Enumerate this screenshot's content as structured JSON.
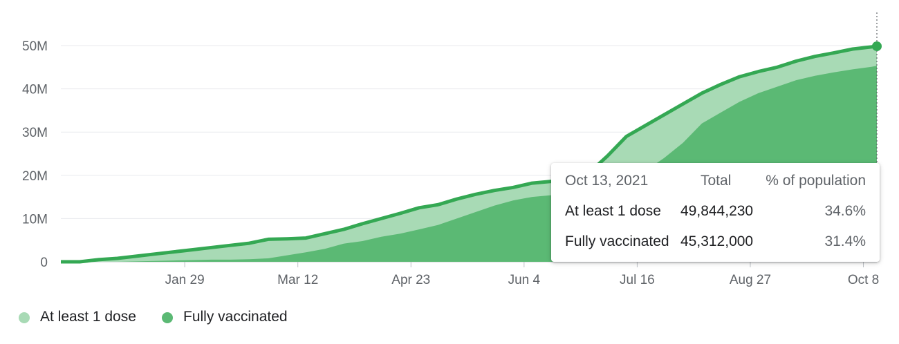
{
  "chart_data": {
    "type": "area",
    "x": [
      "2020-12-14",
      "2020-12-21",
      "2020-12-28",
      "2021-01-04",
      "2021-01-11",
      "2021-01-18",
      "2021-01-25",
      "2021-02-01",
      "2021-02-08",
      "2021-02-15",
      "2021-02-22",
      "2021-03-01",
      "2021-03-08",
      "2021-03-15",
      "2021-03-22",
      "2021-03-29",
      "2021-04-05",
      "2021-04-12",
      "2021-04-19",
      "2021-04-26",
      "2021-05-03",
      "2021-05-10",
      "2021-05-17",
      "2021-05-24",
      "2021-05-31",
      "2021-06-07",
      "2021-06-14",
      "2021-06-21",
      "2021-06-28",
      "2021-07-05",
      "2021-07-12",
      "2021-07-19",
      "2021-07-26",
      "2021-08-02",
      "2021-08-09",
      "2021-08-16",
      "2021-08-23",
      "2021-08-30",
      "2021-09-06",
      "2021-09-13",
      "2021-09-20",
      "2021-09-27",
      "2021-10-04",
      "2021-10-11",
      "2021-10-13"
    ],
    "series": [
      {
        "name": "At least 1 dose",
        "color": "#34a853",
        "fill": "#a8dab5",
        "values": [
          0.0,
          0.0,
          0.5,
          0.8,
          1.3,
          1.8,
          2.3,
          2.8,
          3.3,
          3.8,
          4.3,
          5.2,
          5.3,
          5.5,
          6.5,
          7.5,
          8.8,
          10.0,
          11.2,
          12.5,
          13.2,
          14.5,
          15.6,
          16.5,
          17.2,
          18.2,
          18.6,
          19.0,
          20.5,
          24.5,
          29.0,
          31.5,
          34.0,
          36.5,
          39.0,
          41.0,
          42.8,
          44.0,
          45.0,
          46.4,
          47.5,
          48.3,
          49.2,
          49.7,
          49.84423
        ]
      },
      {
        "name": "Fully vaccinated",
        "color": "#5bb974",
        "fill": "#5bb974",
        "values": [
          0.0,
          0.0,
          0.0,
          0.0,
          0.1,
          0.2,
          0.3,
          0.4,
          0.5,
          0.5,
          0.6,
          0.8,
          1.5,
          2.2,
          3.0,
          4.2,
          4.8,
          5.8,
          6.5,
          7.5,
          8.5,
          10.0,
          11.5,
          13.0,
          14.2,
          15.0,
          15.4,
          15.8,
          16.5,
          17.5,
          19.0,
          21.0,
          24.0,
          27.5,
          32.0,
          34.5,
          37.0,
          39.0,
          40.5,
          42.0,
          43.0,
          43.8,
          44.5,
          45.1,
          45.312
        ]
      }
    ],
    "ylim": [
      0,
      50
    ],
    "yticks": [
      "0",
      "10M",
      "20M",
      "30M",
      "40M",
      "50M"
    ],
    "xticks": [
      {
        "label": "Jan 29",
        "date": "2021-01-29"
      },
      {
        "label": "Mar 12",
        "date": "2021-03-12"
      },
      {
        "label": "Apr 23",
        "date": "2021-04-23"
      },
      {
        "label": "Jun 4",
        "date": "2021-06-04"
      },
      {
        "label": "Jul 16",
        "date": "2021-07-16"
      },
      {
        "label": "Aug 27",
        "date": "2021-08-27"
      },
      {
        "label": "Oct 8",
        "date": "2021-10-08"
      }
    ],
    "grid": true,
    "legend_position": "bottom-left"
  },
  "tooltip": {
    "date": "Oct 13, 2021",
    "col_total": "Total",
    "col_pct": "% of population",
    "rows": [
      {
        "label": "At least 1 dose",
        "total": "49,844,230",
        "pct": "34.6%"
      },
      {
        "label": "Fully vaccinated",
        "total": "45,312,000",
        "pct": "31.4%"
      }
    ]
  },
  "legend": [
    {
      "label": "At least 1 dose",
      "color": "#a8dab5"
    },
    {
      "label": "Fully vaccinated",
      "color": "#5bb974"
    }
  ]
}
